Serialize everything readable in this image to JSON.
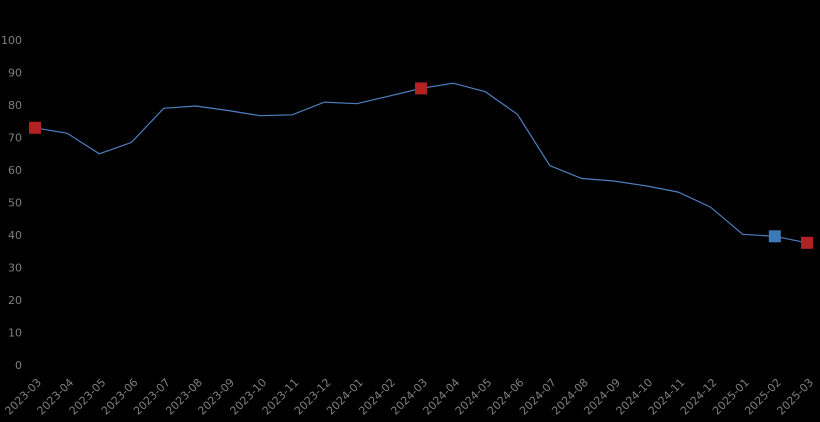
{
  "chart_data": {
    "type": "line",
    "x": [
      "2023-03",
      "2023-04",
      "2023-05",
      "2023-06",
      "2023-07",
      "2023-08",
      "2023-09",
      "2023-10",
      "2023-11",
      "2023-12",
      "2024-01",
      "2024-02",
      "2024-03",
      "2024-04",
      "2024-05",
      "2024-06",
      "2024-07",
      "2024-08",
      "2024-09",
      "2024-10",
      "2024-11",
      "2024-12",
      "2025-01",
      "2025-02",
      "2025-03"
    ],
    "series": [
      {
        "values": [
          73.0,
          71.3,
          65.0,
          68.5,
          79.0,
          79.7,
          78.3,
          76.7,
          77.0,
          80.9,
          80.4,
          82.7,
          85.1,
          86.7,
          84.1,
          77.1,
          61.4,
          57.4,
          56.6,
          55.1,
          53.2,
          48.6,
          40.2,
          39.6,
          37.6
        ],
        "color": "#4f7fbf"
      }
    ],
    "markers": [
      {
        "index": 0,
        "color": "#b22222"
      },
      {
        "index": 12,
        "color": "#b22222"
      },
      {
        "index": 23,
        "color": "#3a7ab8"
      },
      {
        "index": 24,
        "color": "#b22222"
      }
    ],
    "ylim": [
      0,
      100
    ],
    "yticks": [
      "0",
      "10",
      "20",
      "30",
      "40",
      "50",
      "60",
      "70",
      "80",
      "90",
      "100"
    ],
    "grid": false,
    "title": "",
    "xlabel": "",
    "ylabel": ""
  }
}
